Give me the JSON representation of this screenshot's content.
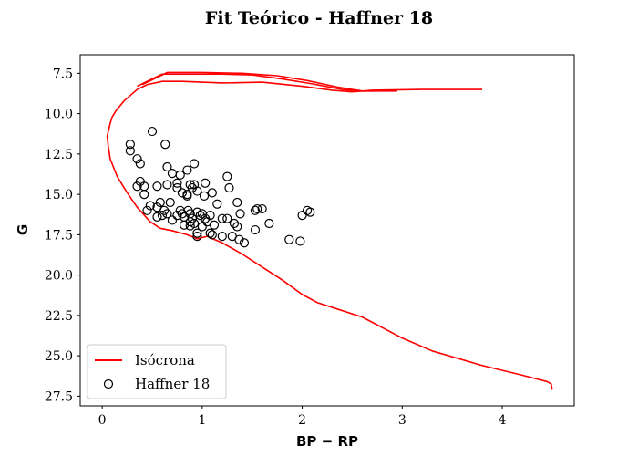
{
  "chart_data": {
    "type": "scatter",
    "title": "Fit Teórico - Haffner 18",
    "xlabel": "BP − RP",
    "ylabel": "G",
    "xlim": [
      -0.22,
      4.72
    ],
    "ylim": [
      28.1,
      6.35
    ],
    "y_inverted": true,
    "xticks": [
      0,
      1,
      2,
      3,
      4
    ],
    "xtick_labels": [
      "0",
      "1",
      "2",
      "3",
      "4"
    ],
    "yticks": [
      7.5,
      10.0,
      12.5,
      15.0,
      17.5,
      20.0,
      22.5,
      25.0,
      27.5
    ],
    "ytick_labels": [
      "7.5",
      "10.0",
      "12.5",
      "15.0",
      "17.5",
      "20.0",
      "22.5",
      "25.0",
      "27.5"
    ],
    "grid": false,
    "legend_position": "lower-left",
    "series": [
      {
        "name": "Isócrona",
        "kind": "line",
        "color": "#ff0000",
        "points": [
          [
            4.5,
            27.1
          ],
          [
            4.49,
            26.75
          ],
          [
            4.45,
            26.6
          ],
          [
            4.2,
            26.2
          ],
          [
            3.8,
            25.6
          ],
          [
            3.3,
            24.7
          ],
          [
            3.0,
            23.9
          ],
          [
            2.6,
            22.6
          ],
          [
            2.4,
            22.2
          ],
          [
            2.15,
            21.7
          ],
          [
            2.0,
            21.2
          ],
          [
            1.8,
            20.3
          ],
          [
            1.6,
            19.5
          ],
          [
            1.4,
            18.7
          ],
          [
            1.2,
            18.0
          ],
          [
            1.05,
            17.6
          ],
          [
            0.95,
            17.75
          ],
          [
            0.85,
            17.5
          ],
          [
            0.7,
            17.25
          ],
          [
            0.58,
            17.1
          ],
          [
            0.48,
            16.7
          ],
          [
            0.35,
            15.8
          ],
          [
            0.25,
            14.9
          ],
          [
            0.15,
            13.9
          ],
          [
            0.08,
            12.8
          ],
          [
            0.06,
            12.0
          ],
          [
            0.05,
            11.4
          ],
          [
            0.08,
            10.6
          ],
          [
            0.1,
            10.2
          ],
          [
            0.14,
            9.8
          ],
          [
            0.22,
            9.2
          ],
          [
            0.35,
            8.5
          ],
          [
            0.45,
            8.2
          ],
          [
            0.6,
            8.0
          ],
          [
            0.8,
            8.0
          ],
          [
            1.2,
            8.1
          ],
          [
            1.6,
            8.05
          ],
          [
            2.0,
            8.3
          ],
          [
            2.3,
            8.55
          ],
          [
            2.5,
            8.65
          ],
          [
            2.7,
            8.55
          ],
          [
            3.2,
            8.5
          ],
          [
            3.8,
            8.5
          ]
        ]
      },
      {
        "name": "Isócrona",
        "kind": "line",
        "color": "#ff0000",
        "points": [
          [
            0.35,
            8.3
          ],
          [
            0.6,
            7.55
          ],
          [
            0.8,
            7.55
          ],
          [
            1.2,
            7.55
          ],
          [
            1.5,
            7.6
          ],
          [
            1.8,
            7.85
          ],
          [
            2.1,
            8.15
          ],
          [
            2.4,
            8.5
          ],
          [
            2.55,
            8.6
          ],
          [
            2.7,
            8.6
          ],
          [
            2.95,
            8.55
          ]
        ]
      },
      {
        "name": "Isócrona",
        "kind": "line",
        "color": "#ff0000",
        "points": [
          [
            0.4,
            8.2
          ],
          [
            0.65,
            7.45
          ],
          [
            1.0,
            7.45
          ],
          [
            1.4,
            7.5
          ],
          [
            1.75,
            7.65
          ],
          [
            2.05,
            7.95
          ],
          [
            2.35,
            8.35
          ],
          [
            2.6,
            8.6
          ],
          [
            2.95,
            8.6
          ]
        ]
      },
      {
        "name": "Haffner 18",
        "kind": "scatter",
        "marker": "open-circle",
        "color": "#000000",
        "points": [
          [
            0.28,
            11.9
          ],
          [
            0.28,
            12.3
          ],
          [
            0.35,
            12.8
          ],
          [
            0.38,
            13.1
          ],
          [
            0.5,
            11.1
          ],
          [
            0.63,
            11.9
          ],
          [
            0.65,
            13.3
          ],
          [
            0.7,
            13.7
          ],
          [
            0.78,
            13.8
          ],
          [
            0.85,
            13.5
          ],
          [
            0.92,
            13.1
          ],
          [
            0.35,
            14.5
          ],
          [
            0.38,
            14.2
          ],
          [
            0.42,
            14.5
          ],
          [
            0.42,
            15.0
          ],
          [
            0.55,
            14.5
          ],
          [
            0.65,
            14.4
          ],
          [
            0.75,
            14.3
          ],
          [
            0.75,
            14.6
          ],
          [
            0.8,
            14.9
          ],
          [
            0.85,
            15.0
          ],
          [
            0.85,
            15.1
          ],
          [
            0.88,
            14.4
          ],
          [
            0.9,
            14.6
          ],
          [
            0.92,
            14.4
          ],
          [
            0.95,
            14.8
          ],
          [
            1.03,
            14.3
          ],
          [
            1.02,
            15.1
          ],
          [
            1.1,
            14.9
          ],
          [
            1.25,
            13.9
          ],
          [
            1.27,
            14.6
          ],
          [
            1.35,
            15.5
          ],
          [
            1.38,
            16.2
          ],
          [
            1.53,
            16.0
          ],
          [
            1.55,
            15.9
          ],
          [
            1.6,
            15.9
          ],
          [
            0.45,
            16.0
          ],
          [
            0.48,
            15.7
          ],
          [
            0.55,
            15.8
          ],
          [
            0.58,
            15.5
          ],
          [
            0.55,
            16.4
          ],
          [
            0.6,
            16.3
          ],
          [
            0.62,
            16.0
          ],
          [
            0.65,
            16.2
          ],
          [
            0.68,
            15.5
          ],
          [
            0.7,
            16.6
          ],
          [
            0.75,
            16.3
          ],
          [
            0.78,
            16.0
          ],
          [
            0.8,
            16.2
          ],
          [
            0.82,
            16.4
          ],
          [
            0.82,
            16.9
          ],
          [
            0.86,
            16.0
          ],
          [
            0.88,
            16.2
          ],
          [
            0.88,
            16.7
          ],
          [
            0.88,
            16.95
          ],
          [
            0.9,
            16.5
          ],
          [
            0.92,
            16.8
          ],
          [
            0.95,
            16.1
          ],
          [
            0.95,
            17.4
          ],
          [
            0.95,
            17.6
          ],
          [
            0.98,
            16.3
          ],
          [
            1.0,
            16.2
          ],
          [
            1.0,
            17.0
          ],
          [
            1.03,
            16.5
          ],
          [
            1.05,
            16.7
          ],
          [
            1.08,
            16.3
          ],
          [
            1.08,
            17.4
          ],
          [
            1.1,
            17.5
          ],
          [
            1.12,
            16.9
          ],
          [
            1.15,
            15.6
          ],
          [
            1.2,
            16.5
          ],
          [
            1.2,
            17.6
          ],
          [
            1.25,
            16.5
          ],
          [
            1.3,
            17.6
          ],
          [
            1.32,
            16.8
          ],
          [
            1.35,
            17.0
          ],
          [
            1.37,
            17.8
          ],
          [
            1.42,
            18.0
          ],
          [
            1.53,
            17.2
          ],
          [
            1.67,
            16.8
          ],
          [
            1.87,
            17.8
          ],
          [
            1.98,
            17.9
          ],
          [
            2.0,
            16.3
          ],
          [
            2.05,
            16.0
          ],
          [
            2.08,
            16.1
          ]
        ]
      }
    ]
  },
  "legend": {
    "entries": [
      {
        "label": "Isócrona",
        "symbol": "line",
        "color": "#ff0000"
      },
      {
        "label": "Haffner 18",
        "symbol": "open-circle",
        "color": "#000000"
      }
    ]
  }
}
